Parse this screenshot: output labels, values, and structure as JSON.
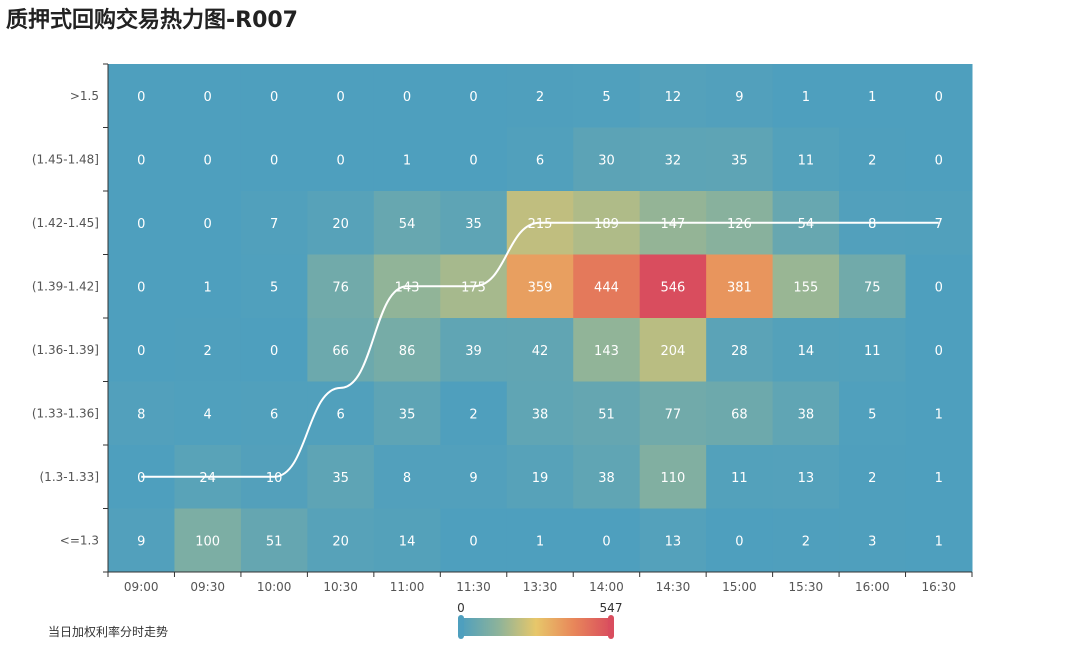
{
  "title": "质押式回购交易热力图-R007",
  "legend_label": "当日加权利率分时走势",
  "chart_data": {
    "type": "heatmap",
    "x_categories": [
      "09:00",
      "09:30",
      "10:00",
      "10:30",
      "11:00",
      "11:30",
      "13:30",
      "14:00",
      "14:30",
      "15:00",
      "15:30",
      "16:00",
      "16:30"
    ],
    "y_categories": [
      "<=1.3",
      "(1.3-1.33]",
      "(1.33-1.36]",
      "(1.36-1.39]",
      "(1.39-1.42]",
      "(1.42-1.45]",
      "(1.45-1.48]",
      ">1.5"
    ],
    "values": [
      [
        0,
        0,
        0,
        0,
        0,
        0,
        2,
        5,
        12,
        9,
        1,
        1,
        0
      ],
      [
        0,
        0,
        0,
        0,
        1,
        0,
        6,
        30,
        32,
        35,
        11,
        2,
        0
      ],
      [
        0,
        0,
        7,
        20,
        54,
        35,
        215,
        189,
        147,
        126,
        54,
        8,
        7
      ],
      [
        0,
        1,
        5,
        76,
        143,
        175,
        359,
        444,
        546,
        381,
        155,
        75,
        0
      ],
      [
        0,
        2,
        0,
        66,
        86,
        39,
        42,
        143,
        204,
        28,
        14,
        11,
        0
      ],
      [
        8,
        4,
        6,
        6,
        35,
        2,
        38,
        51,
        77,
        68,
        38,
        5,
        1
      ],
      [
        0,
        24,
        10,
        35,
        8,
        9,
        19,
        38,
        110,
        11,
        13,
        2,
        1
      ],
      [
        9,
        100,
        51,
        20,
        14,
        0,
        1,
        0,
        13,
        0,
        2,
        3,
        1
      ]
    ],
    "values_row_order": "top_to_bottom",
    "visual_map": {
      "min": 0,
      "max": 547,
      "colors": [
        "#4e9fbe",
        "#8db39a",
        "#e7c76a",
        "#e8875a",
        "#d94d5e"
      ]
    },
    "line_series": {
      "name": "当日加权利率分时走势",
      "y_category_index_per_x": [
        1,
        1,
        1,
        2.4,
        4,
        4,
        5,
        5,
        5,
        5,
        5,
        5,
        5
      ],
      "color": "#ffffff"
    }
  }
}
